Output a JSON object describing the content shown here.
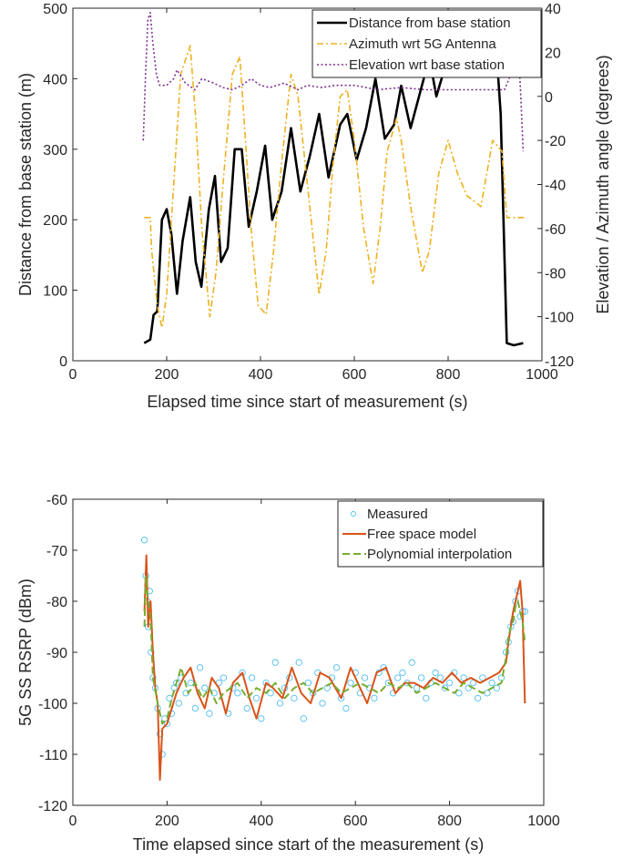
{
  "chart_data": [
    {
      "type": "line",
      "xlabel": "Elapsed time since start of measurement (s)",
      "ylabel": "Distance from base station (m)",
      "ylabel_right": "Elevation / Azimuth angle (degrees)",
      "xlim": [
        0,
        1000
      ],
      "ylim": [
        0,
        500
      ],
      "ylim_right": [
        -120,
        40
      ],
      "x_ticks": [
        "0",
        "200",
        "400",
        "600",
        "800",
        "1000"
      ],
      "y_ticks": [
        "0",
        "100",
        "200",
        "300",
        "400",
        "500"
      ],
      "y_ticks_right": [
        "-120",
        "-100",
        "-80",
        "-60",
        "-40",
        "-20",
        "0",
        "20",
        "40"
      ],
      "legend_position": "top-right",
      "grid": false,
      "series": [
        {
          "name": "Distance from base station",
          "axis": "left",
          "color": "#000000",
          "style": "solid",
          "x": [
            152,
            165,
            172,
            180,
            190,
            200,
            210,
            222,
            234,
            250,
            262,
            274,
            290,
            303,
            316,
            330,
            345,
            360,
            375,
            392,
            410,
            425,
            445,
            465,
            485,
            505,
            525,
            545,
            570,
            585,
            605,
            625,
            645,
            665,
            685,
            700,
            720,
            740,
            760,
            775,
            795,
            815,
            835,
            860,
            880,
            900,
            912,
            925,
            940,
            960
          ],
          "y": [
            25,
            30,
            65,
            70,
            200,
            215,
            180,
            95,
            170,
            232,
            140,
            105,
            215,
            262,
            140,
            160,
            300,
            300,
            190,
            240,
            305,
            200,
            240,
            330,
            240,
            290,
            350,
            260,
            335,
            350,
            285,
            330,
            400,
            315,
            335,
            390,
            330,
            380,
            430,
            375,
            420,
            445,
            450,
            440,
            440,
            470,
            350,
            25,
            22,
            25
          ]
        },
        {
          "name": "Azimuth wrt 5G Antenna",
          "axis": "right",
          "color": "#EDB120",
          "style": "dashdot",
          "x": [
            152,
            165,
            168,
            180,
            190,
            200,
            215,
            230,
            250,
            262,
            275,
            292,
            305,
            320,
            340,
            356,
            368,
            380,
            395,
            412,
            428,
            445,
            465,
            480,
            500,
            525,
            540,
            555,
            570,
            585,
            600,
            620,
            640,
            655,
            670,
            690,
            700,
            720,
            745,
            760,
            780,
            800,
            820,
            840,
            870,
            895,
            915,
            925,
            950,
            962
          ],
          "y": [
            -55,
            -55,
            -70,
            -95,
            -105,
            -90,
            -40,
            10,
            23,
            -10,
            -60,
            -100,
            -80,
            -40,
            10,
            18,
            -20,
            -60,
            -95,
            -99,
            -70,
            -30,
            10,
            0,
            -40,
            -90,
            -70,
            -30,
            0,
            3,
            -20,
            -60,
            -85,
            -60,
            -25,
            -10,
            -20,
            -50,
            -80,
            -70,
            -35,
            -20,
            -35,
            -45,
            -50,
            -20,
            -25,
            -55,
            -55,
            -55
          ]
        },
        {
          "name": "Elevation wrt base station",
          "axis": "right",
          "color": "#7E2F8E",
          "style": "dotted",
          "x": [
            150,
            155,
            160,
            165,
            170,
            178,
            185,
            200,
            215,
            222,
            240,
            260,
            275,
            300,
            320,
            340,
            360,
            380,
            400,
            420,
            450,
            480,
            500,
            530,
            560,
            600,
            650,
            700,
            750,
            800,
            850,
            880,
            900,
            910,
            920,
            930,
            935,
            940,
            945,
            950,
            955,
            960
          ],
          "y": [
            -20,
            10,
            35,
            38,
            25,
            10,
            5,
            5,
            8,
            12,
            6,
            3,
            8,
            6,
            4,
            3,
            5,
            8,
            5,
            4,
            6,
            3,
            5,
            4,
            5,
            5,
            3,
            4,
            3,
            3,
            3,
            3,
            3,
            3,
            3,
            8,
            15,
            25,
            38,
            20,
            0,
            -25
          ]
        }
      ]
    },
    {
      "type": "scatter",
      "xlabel": "Time elapsed since start of the measurement (s)",
      "ylabel": "5G SS RSRP (dBm)",
      "xlim": [
        0,
        1000
      ],
      "ylim": [
        -120,
        -60
      ],
      "x_ticks": [
        "0",
        "200",
        "400",
        "600",
        "800",
        "1000"
      ],
      "y_ticks": [
        "-120",
        "-110",
        "-100",
        "-90",
        "-80",
        "-70",
        "-60"
      ],
      "legend_position": "top-right",
      "grid": false,
      "series": [
        {
          "name": "Measured",
          "marker": "circle",
          "color": "#4DBEEE",
          "x": [
            152,
            155,
            158,
            160,
            163,
            166,
            170,
            175,
            180,
            185,
            190,
            195,
            200,
            205,
            210,
            215,
            220,
            225,
            230,
            240,
            250,
            260,
            270,
            280,
            290,
            300,
            310,
            320,
            330,
            340,
            350,
            360,
            370,
            380,
            390,
            400,
            410,
            420,
            430,
            440,
            450,
            460,
            470,
            480,
            490,
            500,
            510,
            520,
            530,
            540,
            550,
            560,
            570,
            580,
            590,
            600,
            610,
            620,
            630,
            640,
            650,
            660,
            670,
            680,
            690,
            700,
            710,
            720,
            730,
            740,
            750,
            760,
            770,
            780,
            790,
            800,
            810,
            820,
            830,
            840,
            850,
            860,
            870,
            880,
            890,
            900,
            910,
            920,
            925,
            930,
            935,
            940,
            945,
            950,
            955,
            960
          ],
          "y": [
            -68,
            -75,
            -80,
            -85,
            -78,
            -90,
            -95,
            -97,
            -101,
            -106,
            -110,
            -103,
            -104,
            -99,
            -102,
            -97,
            -96,
            -100,
            -95,
            -98,
            -96,
            -101,
            -93,
            -97,
            -102,
            -98,
            -96,
            -95,
            -102,
            -97,
            -98,
            -94,
            -101,
            -95,
            -99,
            -103,
            -96,
            -98,
            -92,
            -100,
            -97,
            -95,
            -99,
            -92,
            -103,
            -96,
            -98,
            -94,
            -100,
            -97,
            -95,
            -93,
            -99,
            -101,
            -96,
            -94,
            -98,
            -95,
            -97,
            -99,
            -94,
            -93,
            -96,
            -98,
            -95,
            -94,
            -96,
            -92,
            -97,
            -95,
            -99,
            -96,
            -94,
            -95,
            -97,
            -96,
            -94,
            -98,
            -95,
            -97,
            -96,
            -99,
            -95,
            -98,
            -96,
            -97,
            -95,
            -90,
            -88,
            -85,
            -84,
            -80,
            -78,
            -83,
            -82,
            -82
          ]
        },
        {
          "name": "Free space model",
          "type": "line",
          "color": "#D95319",
          "x": [
            152,
            156,
            160,
            165,
            170,
            175,
            180,
            185,
            190,
            200,
            210,
            220,
            235,
            250,
            265,
            280,
            295,
            310,
            325,
            340,
            360,
            375,
            390,
            410,
            425,
            445,
            465,
            485,
            505,
            525,
            545,
            570,
            590,
            610,
            625,
            645,
            665,
            685,
            705,
            725,
            745,
            765,
            785,
            805,
            825,
            845,
            865,
            885,
            905,
            920,
            925,
            930,
            935,
            940,
            945,
            950,
            955,
            960
          ],
          "y": [
            -82,
            -71,
            -85,
            -80,
            -90,
            -97,
            -100,
            -115,
            -105,
            -104,
            -101,
            -98,
            -95,
            -93,
            -98,
            -101,
            -95,
            -97,
            -102,
            -96,
            -94,
            -99,
            -103,
            -96,
            -97,
            -99,
            -93,
            -98,
            -100,
            -94,
            -95,
            -99,
            -93,
            -97,
            -100,
            -94,
            -93,
            -98,
            -96,
            -96,
            -97,
            -95,
            -96,
            -94,
            -96,
            -95,
            -96,
            -95,
            -94,
            -92,
            -88,
            -85,
            -82,
            -80,
            -78,
            -76,
            -82,
            -100
          ]
        },
        {
          "name": "Polynomial interpolation",
          "type": "line",
          "color": "#77AC30",
          "style": "dashed",
          "x": [
            152,
            155,
            160,
            165,
            170,
            180,
            190,
            200,
            210,
            220,
            230,
            245,
            260,
            275,
            290,
            305,
            320,
            335,
            350,
            370,
            390,
            410,
            430,
            450,
            470,
            490,
            510,
            530,
            550,
            570,
            590,
            610,
            630,
            650,
            670,
            690,
            710,
            730,
            750,
            770,
            790,
            810,
            830,
            850,
            870,
            890,
            910,
            920,
            925,
            930,
            935,
            940,
            945,
            950,
            955,
            960
          ],
          "y": [
            -85,
            -75,
            -80,
            -83,
            -95,
            -100,
            -104,
            -103,
            -99,
            -96,
            -93,
            -98,
            -96,
            -99,
            -97,
            -100,
            -98,
            -97,
            -96,
            -99,
            -97,
            -98,
            -96,
            -99,
            -97,
            -96,
            -98,
            -97,
            -96,
            -98,
            -97,
            -96,
            -97,
            -98,
            -96,
            -97,
            -96,
            -98,
            -97,
            -96,
            -97,
            -98,
            -96,
            -97,
            -98,
            -97,
            -96,
            -91,
            -87,
            -85,
            -84,
            -81,
            -80,
            -82,
            -84,
            -88
          ]
        }
      ]
    }
  ]
}
